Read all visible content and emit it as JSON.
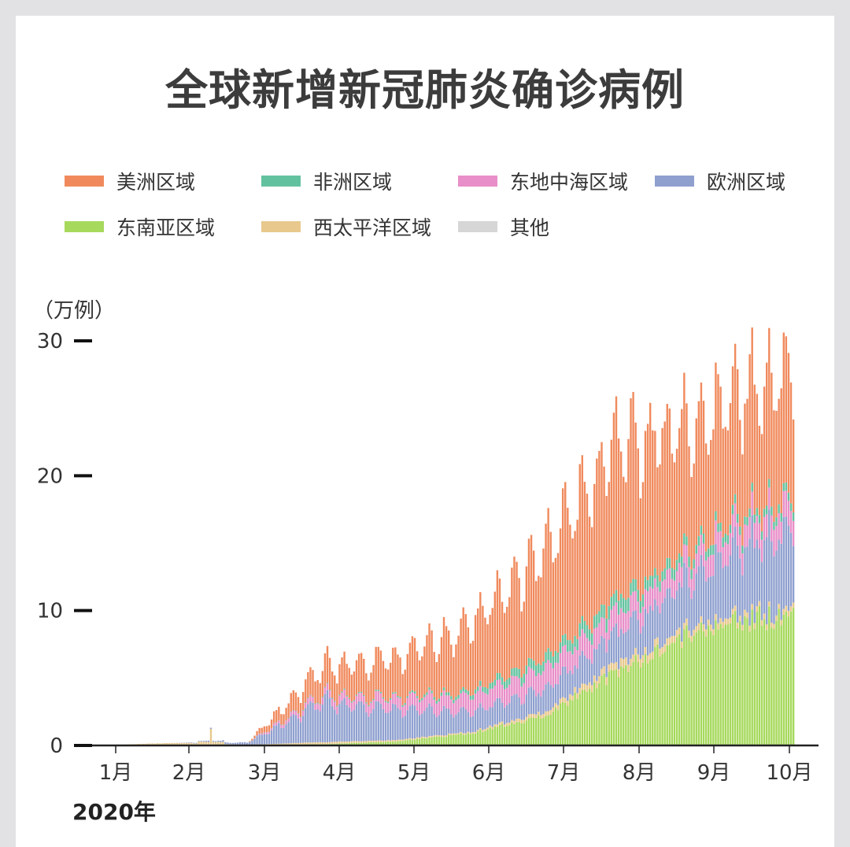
{
  "title": "全球新增新冠肺炎确诊病例",
  "unit_label": "（万例）",
  "year_label": "2020年",
  "colors": {
    "americas": "#f08a5d",
    "africa": "#62c29f",
    "eastern_mediterranean": "#e88ec8",
    "europe": "#8fa0cf",
    "south_east_asia": "#a6d95c",
    "western_pacific": "#e8c88c",
    "other": "#d6d6d6"
  },
  "chart_data": {
    "type": "bar",
    "stacked": true,
    "title": "全球新增新冠肺炎确诊病例",
    "ylabel": "（万例）",
    "ylim": [
      0,
      30
    ],
    "y_ticks": [
      "0",
      "10",
      "20",
      "30"
    ],
    "x_ticks": [
      "1月",
      "2月",
      "3月",
      "4月",
      "5月",
      "6月",
      "7月",
      "8月",
      "9月",
      "10月"
    ],
    "legend_position": "top",
    "series": [
      {
        "name": "美洲区域",
        "key": "americas",
        "color": "#f08a5d"
      },
      {
        "name": "非洲区域",
        "key": "africa",
        "color": "#62c29f"
      },
      {
        "name": "东地中海区域",
        "key": "eastern_mediterranean",
        "color": "#e88ec8"
      },
      {
        "name": "欧洲区域",
        "key": "europe",
        "color": "#8fa0cf"
      },
      {
        "name": "东南亚区域",
        "key": "south_east_asia",
        "color": "#a6d95c"
      },
      {
        "name": "西太平洋区域",
        "key": "western_pacific",
        "color": "#e8c88c"
      },
      {
        "name": "其他",
        "key": "other",
        "color": "#d6d6d6"
      }
    ],
    "monthly_keypoints": {
      "months": [
        "1月",
        "2月",
        "3月",
        "4月",
        "5月",
        "6月",
        "7月",
        "8月",
        "9月",
        "10月"
      ],
      "south_east_asia": [
        0,
        0,
        0,
        0.1,
        0.3,
        0.9,
        2.2,
        5.5,
        8.5,
        9.5
      ],
      "western_pacific": [
        0.02,
        0.2,
        0.05,
        0.15,
        0.1,
        0.1,
        0.3,
        0.6,
        0.5,
        0.4
      ],
      "europe": [
        0,
        0,
        0.2,
        3.5,
        2.8,
        1.8,
        2.0,
        2.8,
        4.5,
        7.0
      ],
      "eastern_mediterranean": [
        0,
        0,
        0,
        0.5,
        0.8,
        1.2,
        1.5,
        1.5,
        1.5,
        1.8
      ],
      "africa": [
        0,
        0,
        0,
        0.05,
        0.1,
        0.3,
        0.8,
        1.0,
        0.7,
        0.6
      ],
      "americas": [
        0,
        0,
        0,
        2.5,
        3.5,
        6.0,
        9.5,
        14.0,
        11.0,
        11.5
      ]
    }
  }
}
